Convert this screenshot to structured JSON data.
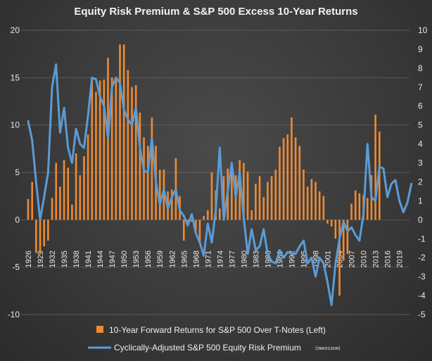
{
  "chart_data": {
    "type": "bar",
    "title": "Equity Risk Premium & S&P 500 Excess 10-Year Returns",
    "left_axis": {
      "min": -10,
      "max": 20,
      "ticks": [
        20,
        15,
        10,
        5,
        0,
        -5,
        -10
      ]
    },
    "right_axis": {
      "min": -5,
      "max": 10,
      "ticks": [
        10,
        9,
        8,
        7,
        6,
        5,
        4,
        3,
        2,
        1,
        0,
        -1,
        -2,
        -3,
        -4,
        -5
      ]
    },
    "x_tick_labels": [
      "1926",
      "1929",
      "1932",
      "1935",
      "1938",
      "1941",
      "1944",
      "1947",
      "1950",
      "1953",
      "1956",
      "1959",
      "1962",
      "1965",
      "1968",
      "1971",
      "1974",
      "1977",
      "1980",
      "1983",
      "1986",
      "1989",
      "1992",
      "1995",
      "1998",
      "2001",
      "2004",
      "2007",
      "2010",
      "2013",
      "2016",
      "2019"
    ],
    "legend_position": "bottom",
    "series": [
      {
        "name": "10-Year Forward Returns for S&P 500 Over T-Notes (Left)",
        "type": "bar",
        "axis": "left",
        "color": "#f08a32",
        "start_year": 1926,
        "values": [
          2.2,
          4.0,
          -3.5,
          -3.5,
          -2.8,
          -2.2,
          2.3,
          6.0,
          3.5,
          6.3,
          5.5,
          1.6,
          7.0,
          4.7,
          6.7,
          9.0,
          14.7,
          13.5,
          14.7,
          14.8,
          17.1,
          15.0,
          14.8,
          18.5,
          18.5,
          15.8,
          14.0,
          14.2,
          11.3,
          8.7,
          7.8,
          10.8,
          7.8,
          5.3,
          5.3,
          3.0,
          3.2,
          6.5,
          2.5,
          -2.2,
          -0.2,
          -0.2,
          -1.5,
          -2.4,
          0.4,
          1.0,
          5.0,
          3.1,
          1.2,
          4.6,
          5.4,
          5.1,
          4.7,
          6.3,
          6.0,
          5.1,
          1.0,
          3.8,
          4.6,
          2.4,
          4.0,
          4.6,
          5.3,
          7.7,
          8.6,
          9.0,
          10.8,
          8.7,
          7.8,
          5.3,
          3.5,
          4.3,
          4.0,
          3.0,
          2.5,
          -0.4,
          -0.7,
          -2.0,
          -8.0,
          -4.3,
          -3.6,
          1.7,
          3.1,
          2.8,
          2.6,
          2.3,
          4.7,
          11.1,
          9.3
        ]
      },
      {
        "name": "Cyclically-Adjusted S&P 500 Equity Risk Premium",
        "type": "line",
        "axis": "right",
        "color": "#5b9bd5",
        "start_year": 1926,
        "end_year": 2021,
        "values": [
          5.2,
          4.2,
          2.0,
          0.0,
          1.2,
          2.5,
          7.0,
          8.2,
          4.6,
          5.9,
          3.8,
          3.0,
          4.8,
          4.0,
          3.8,
          5.5,
          7.5,
          7.4,
          6.5,
          6.0,
          4.3,
          7.0,
          7.5,
          7.2,
          5.8,
          5.3,
          5.0,
          5.9,
          3.8,
          2.6,
          2.5,
          4.3,
          2.0,
          0.8,
          1.6,
          0.6,
          1.2,
          1.6,
          0.5,
          0.2,
          -0.3,
          0.3,
          -0.7,
          -1.2,
          -1.9,
          -0.2,
          -1.2,
          0.5,
          3.8,
          0.0,
          1.5,
          3.0,
          1.2,
          2.5,
          0.1,
          -1.8,
          -0.5,
          -1.6,
          -1.4,
          -0.5,
          -1.8,
          -2.2,
          -2.3,
          -1.6,
          -2.0,
          -1.7,
          -1.8,
          -1.8,
          -1.4,
          -1.1,
          -2.3,
          -2.0,
          -3.0,
          -2.0,
          -2.3,
          -3.3,
          -4.5,
          -2.3,
          -1.0,
          -0.1,
          -0.6,
          -0.4,
          -0.8,
          -1.1,
          0.3,
          4.0,
          1.2,
          1.0,
          2.8,
          2.7,
          1.2,
          1.9,
          2.1,
          1.0,
          0.4,
          0.9,
          1.9
        ]
      }
    ]
  },
  "legend": {
    "bars_label": "10-Year Forward Returns for S&P 500 Over T-Notes (Left)",
    "line_label": "Cyclically-Adjusted S&P 500 Equity Risk Premium"
  },
  "watermark": "(ɪɴʀᴇɢɪᴏɴ)"
}
